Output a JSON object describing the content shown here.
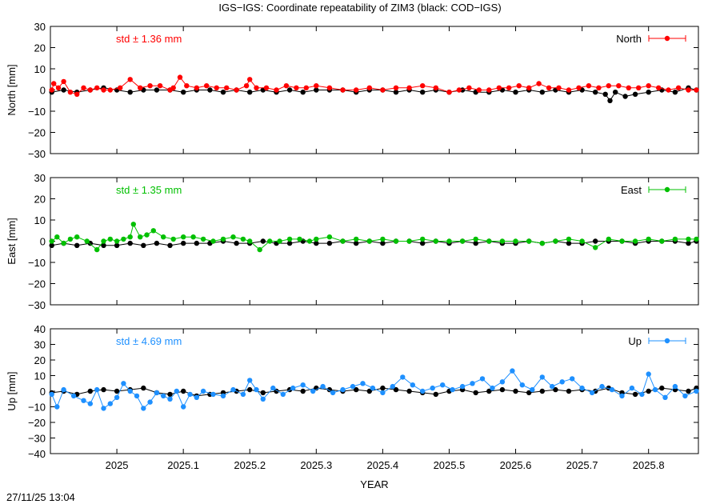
{
  "title": "IGS−IGS: Coordinate repeatability of ZIM3 (black: COD−IGS)",
  "timestamp": "27/11/25 13:04",
  "colors": {
    "reference": "#000000",
    "north": "#ff0000",
    "east": "#00c000",
    "up": "#1e90ff"
  },
  "chart_data": [
    {
      "type": "line",
      "component": "North",
      "ylabel": "North [mm]",
      "xlabel": "",
      "xlim": [
        2024.9,
        2025.875
      ],
      "ylim": [
        -30,
        30
      ],
      "yticks": [
        30,
        20,
        10,
        0,
        -10,
        -20,
        -30
      ],
      "ytick_labels": [
        "30",
        "20",
        "10",
        "0",
        "−10",
        "−20",
        "−30"
      ],
      "std_label": "std ± 1.36 mm",
      "legend": "North",
      "series": [
        {
          "name": "North",
          "color": "#ff0000",
          "x": [
            2024.902,
            2024.905,
            2024.912,
            2024.92,
            2024.93,
            2024.94,
            2024.95,
            2024.96,
            2024.97,
            2024.98,
            2024.99,
            2025.005,
            2025.02,
            2025.035,
            2025.05,
            2025.065,
            2025.08,
            2025.085,
            2025.095,
            2025.105,
            2025.12,
            2025.135,
            2025.15,
            2025.165,
            2025.18,
            2025.195,
            2025.2,
            2025.21,
            2025.225,
            2025.24,
            2025.255,
            2025.27,
            2025.285,
            2025.3,
            2025.32,
            2025.34,
            2025.36,
            2025.38,
            2025.4,
            2025.42,
            2025.44,
            2025.46,
            2025.48,
            2025.5,
            2025.515,
            2025.53,
            2025.545,
            2025.56,
            2025.575,
            2025.59,
            2025.605,
            2025.62,
            2025.635,
            2025.65,
            2025.665,
            2025.68,
            2025.695,
            2025.71,
            2025.725,
            2025.74,
            2025.755,
            2025.77,
            2025.785,
            2025.8,
            2025.815,
            2025.83,
            2025.845,
            2025.86,
            2025.872
          ],
          "y": [
            0,
            3,
            1,
            4,
            -1,
            -2,
            1,
            0,
            1,
            0,
            0,
            1,
            5,
            1,
            2,
            2,
            0,
            1,
            6,
            2,
            1,
            2,
            1,
            1,
            0,
            2,
            5,
            1,
            1,
            0,
            2,
            1,
            1,
            2,
            1,
            0,
            0,
            1,
            0,
            1,
            1,
            2,
            1,
            -1,
            0,
            1,
            0,
            0,
            1,
            1,
            2,
            1,
            3,
            1,
            1,
            0,
            1,
            2,
            1,
            2,
            2,
            1,
            1,
            2,
            1,
            0,
            1,
            0,
            0
          ]
        },
        {
          "name": "COD−IGS",
          "color": "#000000",
          "x": [
            2024.902,
            2024.92,
            2024.94,
            2024.96,
            2024.98,
            2025.0,
            2025.02,
            2025.04,
            2025.06,
            2025.08,
            2025.1,
            2025.12,
            2025.14,
            2025.16,
            2025.18,
            2025.2,
            2025.22,
            2025.24,
            2025.26,
            2025.28,
            2025.3,
            2025.32,
            2025.34,
            2025.36,
            2025.38,
            2025.4,
            2025.42,
            2025.44,
            2025.46,
            2025.48,
            2025.5,
            2025.52,
            2025.54,
            2025.56,
            2025.58,
            2025.6,
            2025.62,
            2025.64,
            2025.66,
            2025.68,
            2025.7,
            2025.72,
            2025.735,
            2025.742,
            2025.75,
            2025.765,
            2025.78,
            2025.8,
            2025.82,
            2025.84,
            2025.86,
            2025.872
          ],
          "y": [
            -1,
            0,
            -1,
            0,
            1,
            0,
            -1,
            0,
            0,
            0,
            -1,
            0,
            0,
            -1,
            0,
            -1,
            0,
            -1,
            0,
            -1,
            0,
            0,
            0,
            -1,
            0,
            0,
            -1,
            0,
            -1,
            0,
            -1,
            0,
            -1,
            -1,
            0,
            -1,
            0,
            -1,
            0,
            -1,
            0,
            -1,
            -2,
            -5,
            -1,
            -3,
            -2,
            -1,
            0,
            -1,
            1,
            0
          ]
        }
      ]
    },
    {
      "type": "line",
      "component": "East",
      "ylabel": "East [mm]",
      "xlabel": "",
      "xlim": [
        2024.9,
        2025.875
      ],
      "ylim": [
        -30,
        30
      ],
      "yticks": [
        30,
        20,
        10,
        0,
        -10,
        -20,
        -30
      ],
      "ytick_labels": [
        "30",
        "20",
        "10",
        "0",
        "−10",
        "−20",
        "−30"
      ],
      "std_label": "std ± 1.35 mm",
      "legend": "East",
      "series": [
        {
          "name": "East",
          "color": "#00c000",
          "x": [
            2024.902,
            2024.91,
            2024.92,
            2024.93,
            2024.94,
            2024.955,
            2024.97,
            2024.98,
            2024.99,
            2025.0,
            2025.01,
            2025.02,
            2025.025,
            2025.035,
            2025.045,
            2025.055,
            2025.07,
            2025.085,
            2025.1,
            2025.115,
            2025.13,
            2025.145,
            2025.16,
            2025.175,
            2025.19,
            2025.2,
            2025.215,
            2025.23,
            2025.245,
            2025.26,
            2025.275,
            2025.29,
            2025.3,
            2025.32,
            2025.34,
            2025.36,
            2025.38,
            2025.4,
            2025.42,
            2025.44,
            2025.46,
            2025.48,
            2025.5,
            2025.52,
            2025.54,
            2025.56,
            2025.58,
            2025.6,
            2025.62,
            2025.64,
            2025.66,
            2025.68,
            2025.7,
            2025.72,
            2025.74,
            2025.76,
            2025.78,
            2025.8,
            2025.82,
            2025.84,
            2025.86,
            2025.872
          ],
          "y": [
            0,
            2,
            -1,
            1,
            2,
            0,
            -4,
            0,
            1,
            0,
            1,
            2,
            8,
            2,
            3,
            5,
            2,
            1,
            2,
            2,
            1,
            0,
            1,
            2,
            1,
            0,
            -4,
            0,
            0,
            1,
            1,
            0,
            1,
            2,
            0,
            1,
            0,
            1,
            0,
            0,
            1,
            0,
            0,
            0,
            1,
            0,
            0,
            0,
            0,
            -1,
            0,
            1,
            0,
            -3,
            1,
            0,
            0,
            1,
            0,
            1,
            1,
            1
          ]
        },
        {
          "name": "COD−IGS",
          "color": "#000000",
          "x": [
            2024.902,
            2024.92,
            2024.94,
            2024.96,
            2024.98,
            2025.0,
            2025.02,
            2025.04,
            2025.06,
            2025.08,
            2025.1,
            2025.12,
            2025.14,
            2025.16,
            2025.18,
            2025.2,
            2025.22,
            2025.24,
            2025.26,
            2025.28,
            2025.3,
            2025.32,
            2025.34,
            2025.36,
            2025.38,
            2025.4,
            2025.42,
            2025.44,
            2025.46,
            2025.48,
            2025.5,
            2025.52,
            2025.54,
            2025.56,
            2025.58,
            2025.6,
            2025.62,
            2025.64,
            2025.66,
            2025.68,
            2025.7,
            2025.72,
            2025.74,
            2025.76,
            2025.78,
            2025.8,
            2025.82,
            2025.84,
            2025.86,
            2025.872
          ],
          "y": [
            -2,
            -1,
            -2,
            -1,
            -2,
            -2,
            -1,
            -2,
            -1,
            -2,
            -1,
            -1,
            -1,
            0,
            -1,
            -1,
            0,
            -1,
            -1,
            0,
            -1,
            -1,
            0,
            -1,
            0,
            -1,
            0,
            0,
            -1,
            0,
            -1,
            0,
            -1,
            0,
            -1,
            -1,
            0,
            -1,
            0,
            -1,
            -1,
            0,
            0,
            0,
            -1,
            0,
            0,
            0,
            -1,
            0
          ]
        }
      ]
    },
    {
      "type": "line",
      "component": "Up",
      "ylabel": "Up [mm]",
      "xlabel": "YEAR",
      "xlim": [
        2024.9,
        2025.875
      ],
      "ylim": [
        -40,
        40
      ],
      "yticks": [
        40,
        30,
        20,
        10,
        0,
        -10,
        -20,
        -30,
        -40
      ],
      "ytick_labels": [
        "40",
        "30",
        "20",
        "10",
        "0",
        "−10",
        "−20",
        "−30",
        "−40"
      ],
      "std_label": "std ± 4.69 mm",
      "legend": "Up",
      "series": [
        {
          "name": "Up",
          "color": "#1e90ff",
          "x": [
            2024.902,
            2024.91,
            2024.92,
            2024.935,
            2024.95,
            2024.96,
            2024.97,
            2024.98,
            2024.99,
            2025.0,
            2025.01,
            2025.02,
            2025.03,
            2025.04,
            2025.05,
            2025.06,
            2025.07,
            2025.08,
            2025.09,
            2025.1,
            2025.11,
            2025.12,
            2025.13,
            2025.145,
            2025.16,
            2025.175,
            2025.19,
            2025.2,
            2025.21,
            2025.22,
            2025.235,
            2025.25,
            2025.265,
            2025.28,
            2025.295,
            2025.31,
            2025.325,
            2025.34,
            2025.355,
            2025.37,
            2025.385,
            2025.4,
            2025.415,
            2025.43,
            2025.445,
            2025.46,
            2025.475,
            2025.49,
            2025.505,
            2025.52,
            2025.535,
            2025.55,
            2025.565,
            2025.58,
            2025.595,
            2025.61,
            2025.625,
            2025.64,
            2025.655,
            2025.67,
            2025.685,
            2025.7,
            2025.715,
            2025.73,
            2025.745,
            2025.76,
            2025.775,
            2025.79,
            2025.8,
            2025.81,
            2025.825,
            2025.84,
            2025.855,
            2025.872
          ],
          "y": [
            -2,
            -10,
            1,
            -3,
            -6,
            -8,
            1,
            -11,
            -8,
            -4,
            5,
            0,
            -3,
            -11,
            -7,
            -1,
            -3,
            -5,
            0,
            -10,
            -2,
            -4,
            0,
            -2,
            -3,
            1,
            -2,
            7,
            1,
            -5,
            2,
            -2,
            2,
            4,
            0,
            3,
            -1,
            1,
            3,
            5,
            2,
            -1,
            3,
            9,
            4,
            0,
            2,
            4,
            1,
            3,
            5,
            8,
            2,
            6,
            13,
            4,
            1,
            9,
            3,
            6,
            8,
            2,
            -1,
            3,
            1,
            -3,
            2,
            -2,
            11,
            1,
            -4,
            3,
            -3,
            0
          ]
        },
        {
          "name": "COD−IGS",
          "color": "#000000",
          "x": [
            2024.902,
            2024.92,
            2024.94,
            2024.96,
            2024.98,
            2025.0,
            2025.02,
            2025.04,
            2025.06,
            2025.08,
            2025.1,
            2025.12,
            2025.14,
            2025.16,
            2025.18,
            2025.2,
            2025.22,
            2025.24,
            2025.26,
            2025.28,
            2025.3,
            2025.32,
            2025.34,
            2025.36,
            2025.38,
            2025.4,
            2025.42,
            2025.44,
            2025.46,
            2025.48,
            2025.5,
            2025.52,
            2025.54,
            2025.56,
            2025.58,
            2025.6,
            2025.62,
            2025.64,
            2025.66,
            2025.68,
            2025.7,
            2025.72,
            2025.74,
            2025.76,
            2025.78,
            2025.8,
            2025.82,
            2025.84,
            2025.86,
            2025.872
          ],
          "y": [
            -1,
            0,
            -2,
            0,
            1,
            0,
            1,
            2,
            -1,
            -2,
            0,
            -3,
            -2,
            -1,
            0,
            1,
            -1,
            0,
            1,
            0,
            2,
            1,
            0,
            1,
            0,
            2,
            1,
            0,
            -1,
            -2,
            0,
            1,
            -1,
            0,
            1,
            0,
            -1,
            0,
            1,
            0,
            1,
            0,
            2,
            -1,
            -2,
            0,
            2,
            1,
            0,
            2
          ]
        }
      ]
    }
  ]
}
